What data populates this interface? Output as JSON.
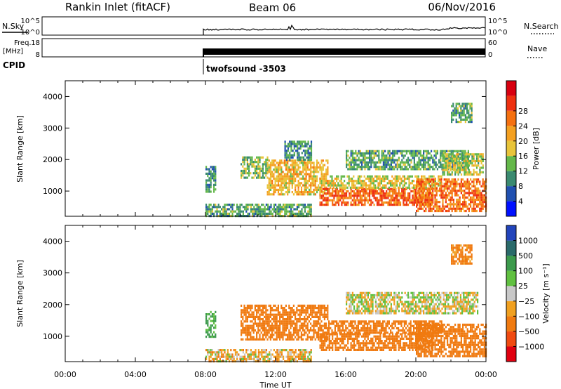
{
  "header": {
    "station": "Rankin Inlet (fitACF)",
    "beam": "Beam 06",
    "date": "06/Nov/2016"
  },
  "meta_panels": {
    "nsky": {
      "label": "N.Sky",
      "left_ticks": [
        "10^5",
        "10^0"
      ],
      "right_ticks": [
        "10^5",
        "10^0"
      ],
      "right_label": "N.Search"
    },
    "freq": {
      "label_line1": "Freq.",
      "label_line2": "[MHz]",
      "left_ticks": [
        "18",
        "8"
      ],
      "right_ticks": [
        "60",
        "0"
      ],
      "right_label": "Nave"
    },
    "cpid": {
      "label": "CPID",
      "program": "twofsound -3503"
    }
  },
  "chart_data": [
    {
      "type": "heatmap",
      "quantity": "Power",
      "ylabel": "Slant Range [km]",
      "xlabel": "",
      "x_ticks": [
        "00:00",
        "04:00",
        "08:00",
        "12:00",
        "16:00",
        "20:00",
        "00:00"
      ],
      "x_range_hours": [
        0,
        24
      ],
      "y_ticks": [
        1000,
        2000,
        3000,
        4000
      ],
      "y_range": [
        200,
        4500
      ],
      "colorbar": {
        "label": "Power [dB]",
        "tick_labels": [
          "4",
          "8",
          "12",
          "16",
          "20",
          "24",
          "28"
        ],
        "colors": [
          "#0010ff",
          "#2050b0",
          "#3a8a70",
          "#64b84a",
          "#e8c43a",
          "#f4a020",
          "#f57010",
          "#ee3010",
          "#d80010"
        ]
      },
      "features": [
        {
          "start_hour": 8.0,
          "end_hour": 8.6,
          "range_low": 1000,
          "range_high": 1800,
          "value": 10
        },
        {
          "start_hour": 10.0,
          "end_hour": 11.5,
          "range_low": 1400,
          "range_high": 2100,
          "value": 14
        },
        {
          "start_hour": 11.5,
          "end_hour": 15.0,
          "range_low": 900,
          "range_high": 2000,
          "value": 20
        },
        {
          "start_hour": 12.5,
          "end_hour": 14.0,
          "range_low": 2000,
          "range_high": 2600,
          "value": 10
        },
        {
          "start_hour": 14.5,
          "end_hour": 21.0,
          "range_low": 600,
          "range_high": 1100,
          "value": 27
        },
        {
          "start_hour": 15.0,
          "end_hour": 21.5,
          "range_low": 1100,
          "range_high": 1500,
          "value": 18
        },
        {
          "start_hour": 16.0,
          "end_hour": 23.0,
          "range_low": 1700,
          "range_high": 2300,
          "value": 12
        },
        {
          "start_hour": 20.0,
          "end_hour": 24.0,
          "range_low": 400,
          "range_high": 1400,
          "value": 26
        },
        {
          "start_hour": 21.5,
          "end_hour": 23.8,
          "range_low": 1500,
          "range_high": 2200,
          "value": 16
        },
        {
          "start_hour": 22.0,
          "end_hour": 23.2,
          "range_low": 3200,
          "range_high": 3800,
          "value": 12
        },
        {
          "start_hour": 8.0,
          "end_hour": 14.0,
          "range_low": 200,
          "range_high": 600,
          "value": 12
        }
      ]
    },
    {
      "type": "heatmap",
      "quantity": "Velocity",
      "ylabel": "Slant Range [km]",
      "xlabel": "Time UT",
      "x_ticks": [
        "00:00",
        "04:00",
        "08:00",
        "12:00",
        "16:00",
        "20:00",
        "00:00"
      ],
      "x_range_hours": [
        0,
        24
      ],
      "y_ticks": [
        1000,
        2000,
        3000,
        4000
      ],
      "y_range": [
        200,
        4500
      ],
      "colorbar": {
        "label": "Velocity [m s⁻¹]",
        "tick_labels": [
          "1000",
          "500",
          "100",
          "25",
          "−25",
          "−100",
          "−500",
          "−1000"
        ],
        "colors": [
          "#2244bb",
          "#2a6a6a",
          "#3c9a4c",
          "#60c040",
          "#c8c8c8",
          "#f0a020",
          "#f07a10",
          "#f04a10",
          "#e00010"
        ]
      },
      "features": [
        {
          "start_hour": 8.0,
          "end_hour": 8.6,
          "range_low": 1000,
          "range_high": 1800,
          "value": 150
        },
        {
          "start_hour": 10.0,
          "end_hour": 15.0,
          "range_low": 900,
          "range_high": 2000,
          "value": -300
        },
        {
          "start_hour": 14.5,
          "end_hour": 21.0,
          "range_low": 600,
          "range_high": 1100,
          "value": -300
        },
        {
          "start_hour": 15.0,
          "end_hour": 21.5,
          "range_low": 1100,
          "range_high": 1500,
          "value": -250
        },
        {
          "start_hour": 16.0,
          "end_hour": 23.5,
          "range_low": 1700,
          "range_high": 2400,
          "value": 0
        },
        {
          "start_hour": 20.0,
          "end_hour": 24.0,
          "range_low": 400,
          "range_high": 1400,
          "value": -200
        },
        {
          "start_hour": 22.0,
          "end_hour": 23.2,
          "range_low": 3300,
          "range_high": 3900,
          "value": -150
        },
        {
          "start_hour": 8.0,
          "end_hour": 14.0,
          "range_low": 200,
          "range_high": 600,
          "value": -50
        }
      ]
    }
  ]
}
